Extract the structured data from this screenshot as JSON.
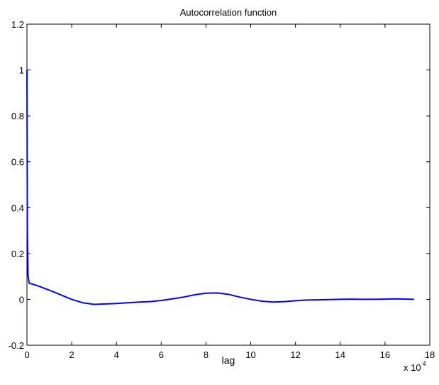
{
  "chart_data": {
    "type": "line",
    "title": "Autocorrelation function",
    "xlabel": "lag",
    "ylabel": "",
    "x_multiplier": {
      "base": "x 10",
      "exponent": "4"
    },
    "xlim": [
      0,
      18
    ],
    "ylim": [
      -0.2,
      1.2
    ],
    "x_ticks": [
      0,
      2,
      4,
      6,
      8,
      10,
      12,
      14,
      16,
      18
    ],
    "x_tick_labels": [
      "0",
      "2",
      "4",
      "6",
      "8",
      "10",
      "12",
      "14",
      "16",
      "18"
    ],
    "y_ticks": [
      -0.2,
      0,
      0.2,
      0.4,
      0.6,
      0.8,
      1,
      1.2
    ],
    "y_tick_labels": [
      "-0.2",
      "0",
      "0.2",
      "0.4",
      "0.6",
      "0.8",
      "1",
      "1.2"
    ],
    "grid": false,
    "box": true,
    "series": [
      {
        "color": "#0000ff",
        "x": [
          0,
          0.02,
          0.05,
          0.1,
          0.3,
          0.6,
          1.0,
          1.5,
          2.0,
          2.5,
          3.0,
          3.5,
          4.0,
          4.5,
          5.0,
          5.5,
          6.0,
          6.5,
          7.0,
          7.5,
          8.0,
          8.5,
          9.0,
          9.5,
          10.0,
          10.5,
          11.0,
          11.5,
          12.0,
          12.5,
          13.0,
          13.5,
          14.0,
          14.5,
          15.0,
          15.5,
          16.0,
          16.5,
          17.0,
          17.3
        ],
        "y": [
          1.0,
          0.3,
          0.1,
          0.07,
          0.065,
          0.055,
          0.04,
          0.02,
          0.0,
          -0.015,
          -0.022,
          -0.02,
          -0.018,
          -0.015,
          -0.012,
          -0.01,
          -0.005,
          0.002,
          0.01,
          0.02,
          0.027,
          0.028,
          0.022,
          0.01,
          0.0,
          -0.008,
          -0.012,
          -0.01,
          -0.006,
          -0.003,
          -0.002,
          -0.001,
          0.0,
          0.001,
          0.0,
          0.0,
          0.001,
          0.002,
          0.001,
          0.0
        ]
      }
    ]
  }
}
